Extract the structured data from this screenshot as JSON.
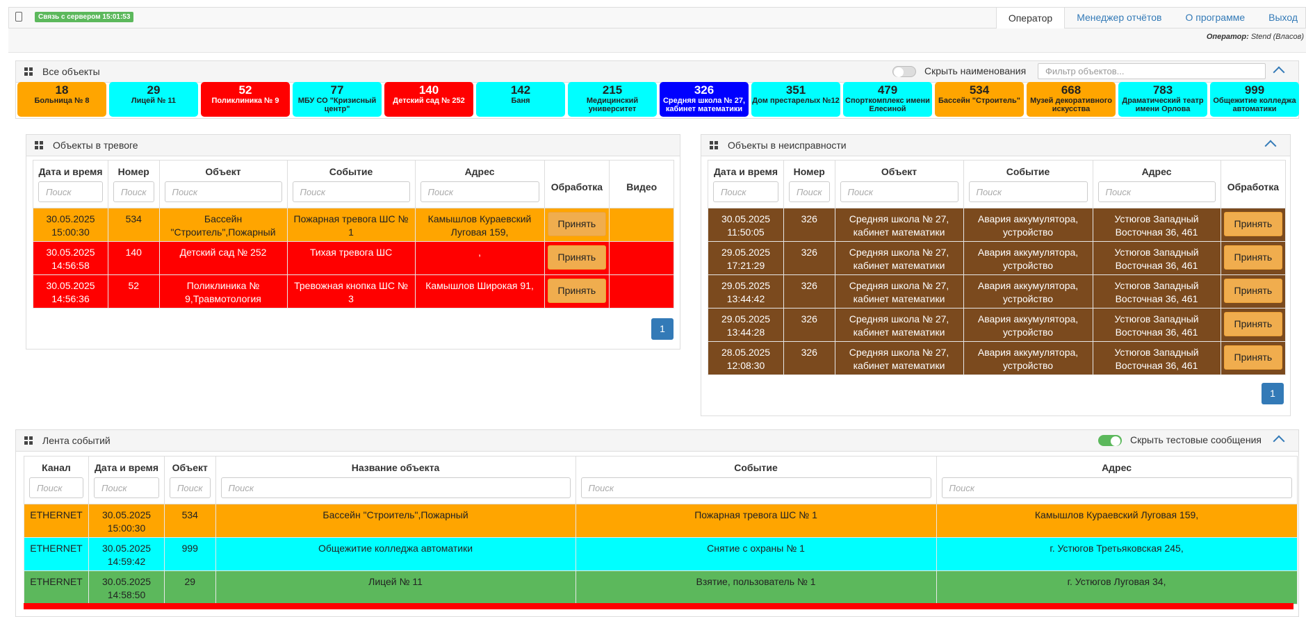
{
  "header": {
    "status": "Связь с сервером 15:01:53",
    "nav": [
      "Оператор",
      "Менеджер отчётов",
      "О программе",
      "Выход"
    ],
    "operator_label": "Оператор:",
    "operator_name": "Stend (Власов)"
  },
  "objects": {
    "title": "Все объекты",
    "toggle_label": "Скрыть наименования",
    "toggle_on": false,
    "filter_placeholder": "Фильтр объектов...",
    "tiles": [
      {
        "number": "18",
        "name": "Больница № 8",
        "color": "#ffa500"
      },
      {
        "number": "29",
        "name": "Лицей № 11",
        "color": "#00ffff"
      },
      {
        "number": "52",
        "name": "Поликлиника № 9",
        "color": "#ff0000"
      },
      {
        "number": "77",
        "name": "МБУ СО \"Кризисный центр\"",
        "color": "#00ffff"
      },
      {
        "number": "140",
        "name": "Детский сад № 252",
        "color": "#ff0000"
      },
      {
        "number": "142",
        "name": "Баня",
        "color": "#00ffff"
      },
      {
        "number": "215",
        "name": "Медицинский университет",
        "color": "#00ffff"
      },
      {
        "number": "326",
        "name": "Средняя школа № 27, кабинет математики",
        "color": "#0000ff"
      },
      {
        "number": "351",
        "name": "Дом престарелых №12",
        "color": "#00ffff"
      },
      {
        "number": "479",
        "name": "Спорткомплекс имени Елесиной",
        "color": "#00ffff"
      },
      {
        "number": "534",
        "name": "Бассейн \"Строитель\"",
        "color": "#ffa500"
      },
      {
        "number": "668",
        "name": "Музей декоративного искусства",
        "color": "#ffa500"
      },
      {
        "number": "783",
        "name": "Драматический театр имени Орлова",
        "color": "#00ffff"
      },
      {
        "number": "999",
        "name": "Общежитие колледжа автоматики",
        "color": "#00ffff"
      }
    ]
  },
  "alarms": {
    "title": "Объекты в тревоге",
    "columns": [
      "Дата и время",
      "Номер",
      "Объект",
      "Событие",
      "Адрес",
      "Обработка",
      "Видео"
    ],
    "search": "Поиск",
    "accept": "Принять",
    "page": "1",
    "rows": [
      {
        "cells": [
          "30.05.2025 15:00:30",
          "534",
          "Бассейн \"Строитель\",Пожарный",
          "Пожарная тревога ШС № 1",
          "Камышлов Кураевский Луговая 159,"
        ],
        "color": "#ffa500"
      },
      {
        "cells": [
          "30.05.2025 14:56:58",
          "140",
          "Детский сад № 252",
          "Тихая тревога ШС",
          ","
        ],
        "color": "#ff0000"
      },
      {
        "cells": [
          "30.05.2025 14:56:36",
          "52",
          "Поликлиника № 9,Травмотология",
          "Тревожная кнопка ШС № 3",
          "Камышлов Широкая 91,"
        ],
        "color": "#ff0000"
      }
    ]
  },
  "faults": {
    "title": "Объекты в неисправности",
    "columns": [
      "Дата и время",
      "Номер",
      "Объект",
      "Событие",
      "Адрес",
      "Обработка"
    ],
    "search": "Поиск",
    "accept": "Принять",
    "page": "1",
    "rows": [
      {
        "cells": [
          "30.05.2025 11:50:05",
          "326",
          "Средняя школа № 27, кабинет математики",
          "Авария аккумулятора, устройство",
          "Устюгов Западный Восточная 36, 461"
        ],
        "color": "#7b4a1e"
      },
      {
        "cells": [
          "29.05.2025 17:21:29",
          "326",
          "Средняя школа № 27, кабинет математики",
          "Авария аккумулятора, устройство",
          "Устюгов Западный Восточная 36, 461"
        ],
        "color": "#7b4a1e"
      },
      {
        "cells": [
          "29.05.2025 13:44:42",
          "326",
          "Средняя школа № 27, кабинет математики",
          "Авария аккумулятора, устройство",
          "Устюгов Западный Восточная 36, 461"
        ],
        "color": "#7b4a1e"
      },
      {
        "cells": [
          "29.05.2025 13:44:28",
          "326",
          "Средняя школа № 27, кабинет математики",
          "Авария аккумулятора, устройство",
          "Устюгов Западный Восточная 36, 461"
        ],
        "color": "#7b4a1e"
      },
      {
        "cells": [
          "28.05.2025 12:08:30",
          "326",
          "Средняя школа № 27, кабинет математики",
          "Авария аккумулятора, устройство",
          "Устюгов Западный Восточная 36, 461"
        ],
        "color": "#7b4a1e"
      }
    ]
  },
  "events": {
    "title": "Лента событий",
    "toggle_label": "Скрыть тестовые сообщения",
    "toggle_on": true,
    "columns": [
      "Канал",
      "Дата и время",
      "Объект",
      "Название объекта",
      "Событие",
      "Адрес"
    ],
    "search": "Поиск",
    "rows": [
      {
        "cells": [
          "ETHERNET",
          "30.05.2025 15:00:30",
          "534",
          "Бассейн \"Строитель\",Пожарный",
          "Пожарная тревога ШС № 1",
          "Камышлов Кураевский Луговая 159,"
        ],
        "color": "#ffa500"
      },
      {
        "cells": [
          "ETHERNET",
          "30.05.2025 14:59:42",
          "999",
          "Общежитие колледжа автоматики",
          "Снятие с охраны № 1",
          "г. Устюгов Третьяковская 245,"
        ],
        "color": "#00ffff"
      },
      {
        "cells": [
          "ETHERNET",
          "30.05.2025 14:58:50",
          "29",
          "Лицей № 11",
          "Взятие, пользователь № 1",
          "г. Устюгов Луговая 34,"
        ],
        "color": "#5cb85c"
      }
    ]
  }
}
